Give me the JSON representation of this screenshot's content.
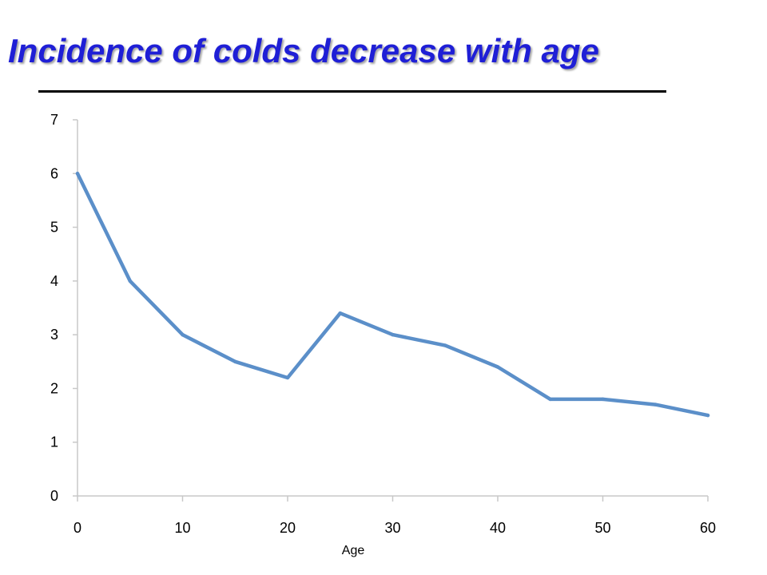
{
  "slide": {
    "title": "Incidence of colds decrease with age"
  },
  "colors": {
    "title": "#1f1fd6",
    "line": "#5b8fc9",
    "axis": "#c8c8c8",
    "rule": "#000000"
  },
  "chart_data": {
    "type": "line",
    "title": "",
    "xlabel": "Age",
    "ylabel": "",
    "x": [
      0,
      5,
      10,
      15,
      20,
      25,
      30,
      35,
      40,
      45,
      50,
      55,
      60
    ],
    "series": [
      {
        "values": [
          6,
          4,
          3,
          2.5,
          2.2,
          3.4,
          3,
          2.8,
          2.4,
          1.8,
          1.8,
          1.7,
          1.5
        ]
      }
    ],
    "xlim": [
      0,
      60
    ],
    "ylim": [
      0,
      7
    ],
    "xticks": [
      0,
      10,
      20,
      30,
      40,
      50,
      60
    ],
    "yticks": [
      0,
      1,
      2,
      3,
      4,
      5,
      6,
      7
    ],
    "grid": false,
    "legend": "none"
  }
}
